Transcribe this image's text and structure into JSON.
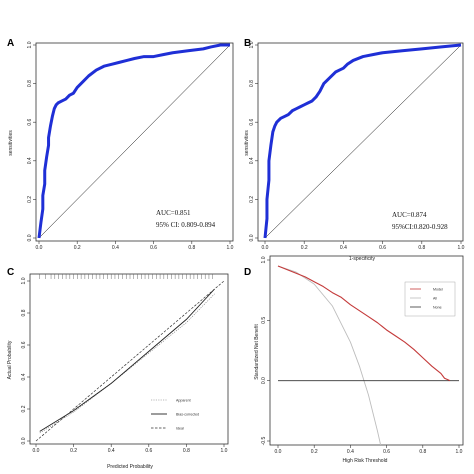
{
  "panels": [
    {
      "letter": "A",
      "ylabel": "sensitivities",
      "xlabel": "",
      "auc": "AUC=0.851",
      "ci": "95% CI: 0.809-0.894"
    },
    {
      "letter": "B",
      "ylabel": "sensitivities",
      "xlabel": "1-specificity",
      "auc": "AUC=0.874",
      "ci": "95%CI:0.820-0.928"
    },
    {
      "letter": "C",
      "ylabel": "Actual Probability",
      "xlabel": "Predicted Probability",
      "legend": [
        "Apparent",
        "Bias-corrected",
        "Ideal"
      ]
    },
    {
      "letter": "D",
      "ylabel": "Standardized Net Benefit",
      "xlabel": "High Risk Threshold",
      "legend": [
        "Model",
        "All",
        "None"
      ]
    }
  ],
  "chart_data": [
    {
      "type": "line",
      "panel": "A",
      "ylabel": "sensitivities",
      "xlim": [
        0,
        1
      ],
      "ylim": [
        0,
        1
      ],
      "x_ticks": [
        "0.0",
        "0.2",
        "0.4",
        "0.6",
        "0.8",
        "1.0"
      ],
      "y_ticks": [
        "0.0",
        "0.2",
        "0.4",
        "0.6",
        "0.8",
        "1.0"
      ],
      "annotations": [
        "AUC=0.851",
        "95% CI: 0.809-0.894"
      ],
      "colors": {
        "roc": "#1f2fd6",
        "diagonal": "#000000"
      },
      "series": [
        {
          "x": [
            0,
            0.01,
            0.02,
            0.02,
            0.03,
            0.03,
            0.04,
            0.05,
            0.05,
            0.06,
            0.07,
            0.08,
            0.09,
            0.1,
            0.12,
            0.14,
            0.16,
            0.18,
            0.2,
            0.23,
            0.26,
            0.3,
            0.34,
            0.38,
            0.42,
            0.46,
            0.5,
            0.55,
            0.6,
            0.65,
            0.7,
            0.78,
            0.86,
            0.9,
            0.95,
            1.0
          ],
          "y": [
            0,
            0.08,
            0.15,
            0.22,
            0.28,
            0.35,
            0.42,
            0.48,
            0.52,
            0.58,
            0.63,
            0.67,
            0.69,
            0.7,
            0.71,
            0.72,
            0.74,
            0.75,
            0.78,
            0.81,
            0.84,
            0.87,
            0.89,
            0.9,
            0.91,
            0.92,
            0.93,
            0.94,
            0.94,
            0.95,
            0.96,
            0.97,
            0.98,
            0.99,
            1.0,
            1.0
          ]
        },
        {
          "x": [
            0,
            1
          ],
          "y": [
            0,
            1
          ]
        }
      ]
    },
    {
      "type": "line",
      "panel": "B",
      "xlabel": "1-specificity",
      "ylabel": "sensitivities",
      "xlim": [
        0,
        1
      ],
      "ylim": [
        0,
        1
      ],
      "x_ticks": [
        "0.0",
        "0.2",
        "0.4",
        "0.6",
        "0.8",
        "1.0"
      ],
      "y_ticks": [
        "0.0",
        "0.2",
        "0.4",
        "0.6",
        "0.8",
        "1.0"
      ],
      "annotations": [
        "AUC=0.874",
        "95%CI:0.820-0.928"
      ],
      "colors": {
        "roc": "#1f2fd6",
        "diagonal": "#000000"
      },
      "series": [
        {
          "x": [
            0,
            0.01,
            0.01,
            0.02,
            0.02,
            0.03,
            0.04,
            0.05,
            0.06,
            0.08,
            0.1,
            0.12,
            0.14,
            0.16,
            0.18,
            0.2,
            0.22,
            0.24,
            0.26,
            0.28,
            0.3,
            0.33,
            0.36,
            0.38,
            0.4,
            0.42,
            0.45,
            0.5,
            0.55,
            0.6,
            0.7,
            0.8,
            0.9,
            1.0
          ],
          "y": [
            0,
            0.1,
            0.2,
            0.3,
            0.4,
            0.48,
            0.55,
            0.58,
            0.6,
            0.62,
            0.63,
            0.64,
            0.66,
            0.67,
            0.68,
            0.69,
            0.7,
            0.71,
            0.73,
            0.76,
            0.8,
            0.83,
            0.86,
            0.87,
            0.88,
            0.9,
            0.92,
            0.94,
            0.95,
            0.96,
            0.97,
            0.98,
            0.99,
            1.0
          ]
        },
        {
          "x": [
            0,
            1
          ],
          "y": [
            0,
            1
          ]
        }
      ]
    },
    {
      "type": "line",
      "panel": "C",
      "xlabel": "Predicted Probability",
      "ylabel": "Actual Probability",
      "xlim": [
        0,
        1
      ],
      "ylim": [
        0,
        1
      ],
      "x_ticks": [
        "0.0",
        "0.2",
        "0.4",
        "0.6",
        "0.8",
        "1.0"
      ],
      "y_ticks": [
        "0.0",
        "0.2",
        "0.4",
        "0.6",
        "0.8",
        "1.0"
      ],
      "rug_x": [
        0.02,
        0.05,
        0.08,
        0.1,
        0.12,
        0.14,
        0.16,
        0.18,
        0.2,
        0.22,
        0.24,
        0.26,
        0.28,
        0.3,
        0.32,
        0.34,
        0.36,
        0.38,
        0.4,
        0.42,
        0.44,
        0.46,
        0.48,
        0.5,
        0.52,
        0.54,
        0.56,
        0.58,
        0.6,
        0.62,
        0.64,
        0.66,
        0.68,
        0.7,
        0.72,
        0.74,
        0.76,
        0.78,
        0.8,
        0.82,
        0.84,
        0.86,
        0.88,
        0.9,
        0.92,
        0.94
      ],
      "series": [
        {
          "name": "Apparent",
          "x": [
            0.02,
            0.2,
            0.4,
            0.6,
            0.8,
            0.95
          ],
          "y": [
            0.05,
            0.18,
            0.36,
            0.55,
            0.74,
            0.92
          ]
        },
        {
          "name": "Bias-corrected",
          "x": [
            0.02,
            0.2,
            0.4,
            0.6,
            0.8,
            0.95
          ],
          "y": [
            0.06,
            0.19,
            0.36,
            0.56,
            0.76,
            0.95
          ]
        },
        {
          "name": "Ideal",
          "x": [
            0,
            1
          ],
          "y": [
            0,
            1
          ]
        }
      ]
    },
    {
      "type": "line",
      "panel": "D",
      "xlabel": "High Risk Threshold",
      "ylabel": "Standardized Net Benefit",
      "xlim": [
        0,
        1
      ],
      "ylim": [
        -0.5,
        1.0
      ],
      "x_ticks": [
        "0.0",
        "0.2",
        "0.4",
        "0.6",
        "0.8",
        "1.0"
      ],
      "y_ticks": [
        "-0.5",
        "0.0",
        "0.5",
        "1.0"
      ],
      "colors": {
        "Model": "#c43a3a",
        "All": "#bdbdbd",
        "None": "#333333"
      },
      "series": [
        {
          "name": "Model",
          "x": [
            0,
            0.05,
            0.1,
            0.15,
            0.2,
            0.25,
            0.3,
            0.35,
            0.4,
            0.45,
            0.5,
            0.55,
            0.6,
            0.65,
            0.7,
            0.75,
            0.8,
            0.85,
            0.9,
            0.92,
            0.95
          ],
          "y": [
            0.95,
            0.92,
            0.89,
            0.86,
            0.82,
            0.78,
            0.73,
            0.69,
            0.63,
            0.58,
            0.53,
            0.48,
            0.42,
            0.37,
            0.32,
            0.26,
            0.19,
            0.12,
            0.06,
            0.02,
            0.0
          ]
        },
        {
          "name": "All",
          "x": [
            0,
            0.1,
            0.2,
            0.3,
            0.4,
            0.45,
            0.5,
            0.55,
            0.58
          ],
          "y": [
            0.95,
            0.9,
            0.8,
            0.62,
            0.32,
            0.12,
            -0.12,
            -0.42,
            -0.62
          ]
        },
        {
          "name": "None",
          "x": [
            0,
            1
          ],
          "y": [
            0,
            0
          ]
        }
      ]
    }
  ]
}
